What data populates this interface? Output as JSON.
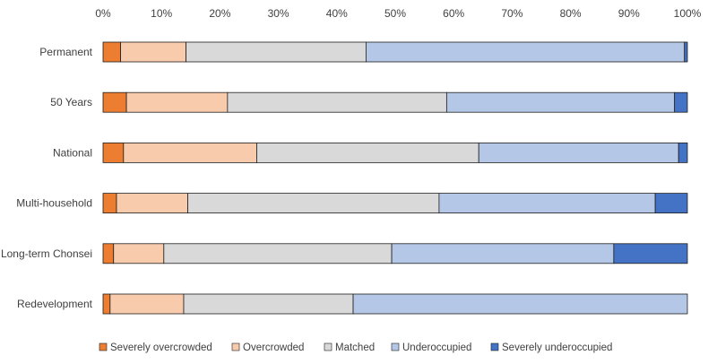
{
  "chart_data": {
    "type": "bar",
    "orientation": "horizontal",
    "stacked": true,
    "percent": true,
    "xlim": [
      0,
      100
    ],
    "xticks": [
      "0%",
      "10%",
      "20%",
      "30%",
      "40%",
      "50%",
      "60%",
      "70%",
      "80%",
      "90%",
      "100%"
    ],
    "categories": [
      "Permanent",
      "50 Years",
      "National",
      "Multi-household",
      "Long-term Chonsei",
      "Redevelopment"
    ],
    "series": [
      {
        "name": "Severely overcrowded",
        "color": "#ED7D31",
        "values": [
          3.0,
          4.0,
          3.5,
          2.3,
          1.8,
          1.2
        ]
      },
      {
        "name": "Overcrowded",
        "color": "#F8CBAD",
        "values": [
          11.2,
          17.3,
          22.8,
          12.2,
          8.6,
          12.6
        ]
      },
      {
        "name": "Matched",
        "color": "#D9D9D9",
        "values": [
          30.8,
          37.5,
          38.0,
          43.0,
          39.0,
          29.0
        ]
      },
      {
        "name": "Underoccupied",
        "color": "#B4C7E7",
        "values": [
          54.5,
          39.0,
          34.2,
          37.0,
          38.0,
          57.2
        ]
      },
      {
        "name": "Severely underoccupied",
        "color": "#4472C4",
        "values": [
          0.5,
          2.2,
          1.5,
          5.5,
          12.6,
          0.0
        ]
      }
    ],
    "grid": false,
    "legend_position": "bottom"
  }
}
